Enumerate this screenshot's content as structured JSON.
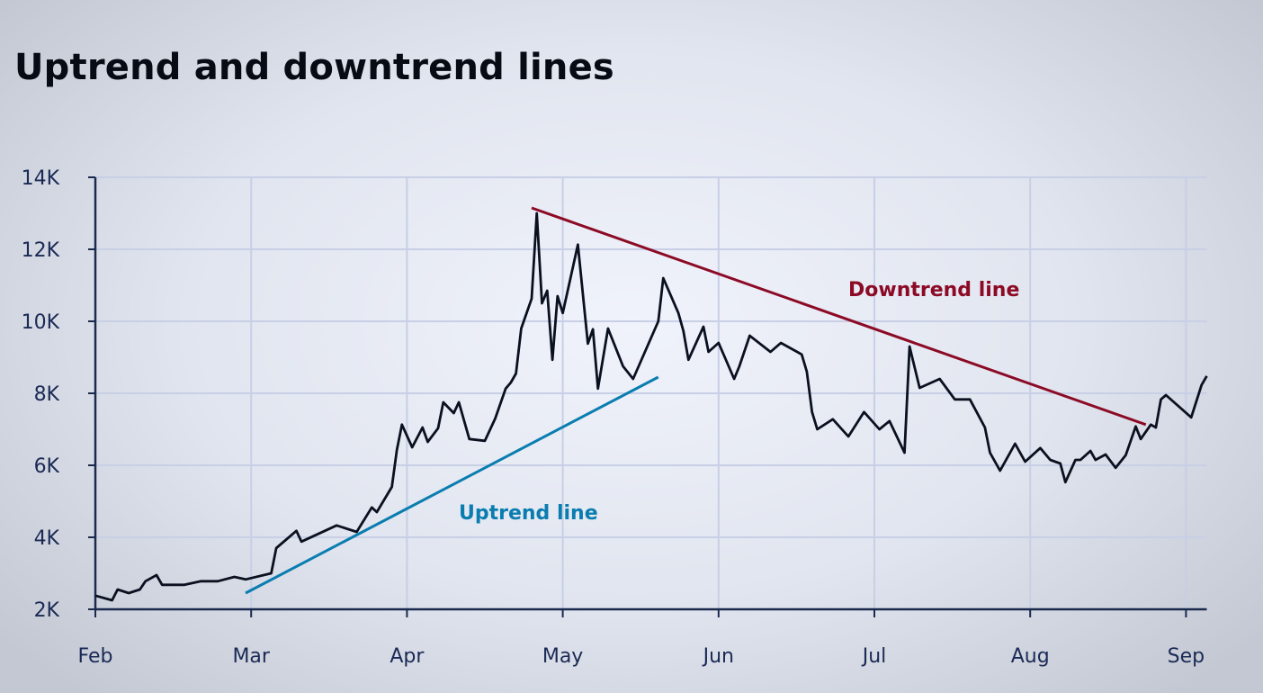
{
  "chart_data": {
    "type": "line",
    "title": "Uptrend and downtrend lines",
    "xlabel": "",
    "ylabel": "",
    "x_ticks": [
      "Feb",
      "Mar",
      "Apr",
      "May",
      "Jun",
      "Jul",
      "Aug",
      "Sep"
    ],
    "y_ticks": [
      "2K",
      "4K",
      "6K",
      "8K",
      "10K",
      "12K",
      "14K"
    ],
    "y_tick_values": [
      2000,
      4000,
      6000,
      8000,
      10000,
      12000,
      14000
    ],
    "ylim": [
      2000,
      14000
    ],
    "xlim": [
      "Feb 1",
      "Sep 5"
    ],
    "grid": true,
    "colors": {
      "series": "#0b1020",
      "uptrend": "#0a7db0",
      "downtrend": "#8c0a25",
      "grid": "#c8cfe6",
      "axis": "#1a2a4f"
    },
    "series": [
      {
        "x": [
          "Feb 1",
          "Feb 4",
          "Feb 5",
          "Feb 7",
          "Feb 9",
          "Feb 10",
          "Feb 12",
          "Feb 13",
          "Feb 17",
          "Feb 20",
          "Feb 23",
          "Feb 26",
          "Feb 28",
          "Mar 5",
          "Mar 6",
          "Mar 10",
          "Mar 11",
          "Mar 18",
          "Mar 22",
          "Mar 25",
          "Mar 26",
          "Mar 29",
          "Mar 30",
          "Mar 31",
          "Apr 2",
          "Apr 4",
          "Apr 5",
          "Apr 7",
          "Apr 8",
          "Apr 10",
          "Apr 11",
          "Apr 13",
          "Apr 16",
          "Apr 18",
          "Apr 20",
          "Apr 21",
          "Apr 22",
          "Apr 23",
          "Apr 25",
          "Apr 26",
          "Apr 27",
          "Apr 28",
          "Apr 29",
          "Apr 30",
          "May 1",
          "May 4",
          "May 6",
          "May 7",
          "May 8",
          "May 10",
          "May 13",
          "May 15",
          "May 20",
          "May 21",
          "May 24",
          "May 25",
          "May 26",
          "May 29",
          "May 30",
          "Jun 1",
          "Jun 4",
          "Jun 5",
          "Jun 7",
          "Jun 11",
          "Jun 13",
          "Jun 17",
          "Jun 18",
          "Jun 19",
          "Jun 20",
          "Jun 23",
          "Jun 26",
          "Jun 29",
          "Jul 2",
          "Jul 4",
          "Jul 7",
          "Jul 8",
          "Jul 10",
          "Jul 14",
          "Jul 17",
          "Jul 20",
          "Jul 23",
          "Jul 24",
          "Jul 26",
          "Jul 29",
          "Jul 31",
          "Aug 3",
          "Aug 5",
          "Aug 7",
          "Aug 8",
          "Aug 10",
          "Aug 11",
          "Aug 13",
          "Aug 14",
          "Aug 16",
          "Aug 18",
          "Aug 20",
          "Aug 22",
          "Aug 23",
          "Aug 25",
          "Aug 26",
          "Aug 27",
          "Aug 28",
          "Sep 2",
          "Sep 4",
          "Sep 5"
        ],
        "values": [
          2380,
          2250,
          2550,
          2450,
          2550,
          2780,
          2950,
          2680,
          2680,
          2780,
          2780,
          2900,
          2830,
          3000,
          3700,
          4180,
          3880,
          4330,
          4150,
          4830,
          4700,
          5400,
          6430,
          7130,
          6500,
          7050,
          6650,
          7030,
          7750,
          7450,
          7750,
          6730,
          6680,
          7300,
          8130,
          8300,
          8550,
          9800,
          10630,
          13000,
          10500,
          10850,
          8930,
          10700,
          10230,
          12130,
          9380,
          9780,
          8130,
          9800,
          8750,
          8400,
          10000,
          11200,
          10230,
          9730,
          8930,
          9850,
          9150,
          9400,
          8400,
          8750,
          9600,
          9150,
          9400,
          9080,
          8600,
          7480,
          7000,
          7280,
          6800,
          7480,
          7000,
          7230,
          6350,
          9300,
          8150,
          8400,
          7830,
          7830,
          7050,
          6350,
          5850,
          6600,
          6100,
          6480,
          6150,
          6050,
          5530,
          6150,
          6150,
          6400,
          6150,
          6300,
          5930,
          6280,
          7080,
          6730,
          7130,
          7050,
          7830,
          7950,
          7330,
          8230,
          8480
        ]
      }
    ],
    "trendlines": [
      {
        "name": "Uptrend line",
        "x": [
          "Feb 28",
          "May 20"
        ],
        "values": [
          2450,
          8450
        ]
      },
      {
        "name": "Downtrend line",
        "x": [
          "Apr 25",
          "Aug 24"
        ],
        "values": [
          13150,
          7130
        ]
      }
    ]
  }
}
